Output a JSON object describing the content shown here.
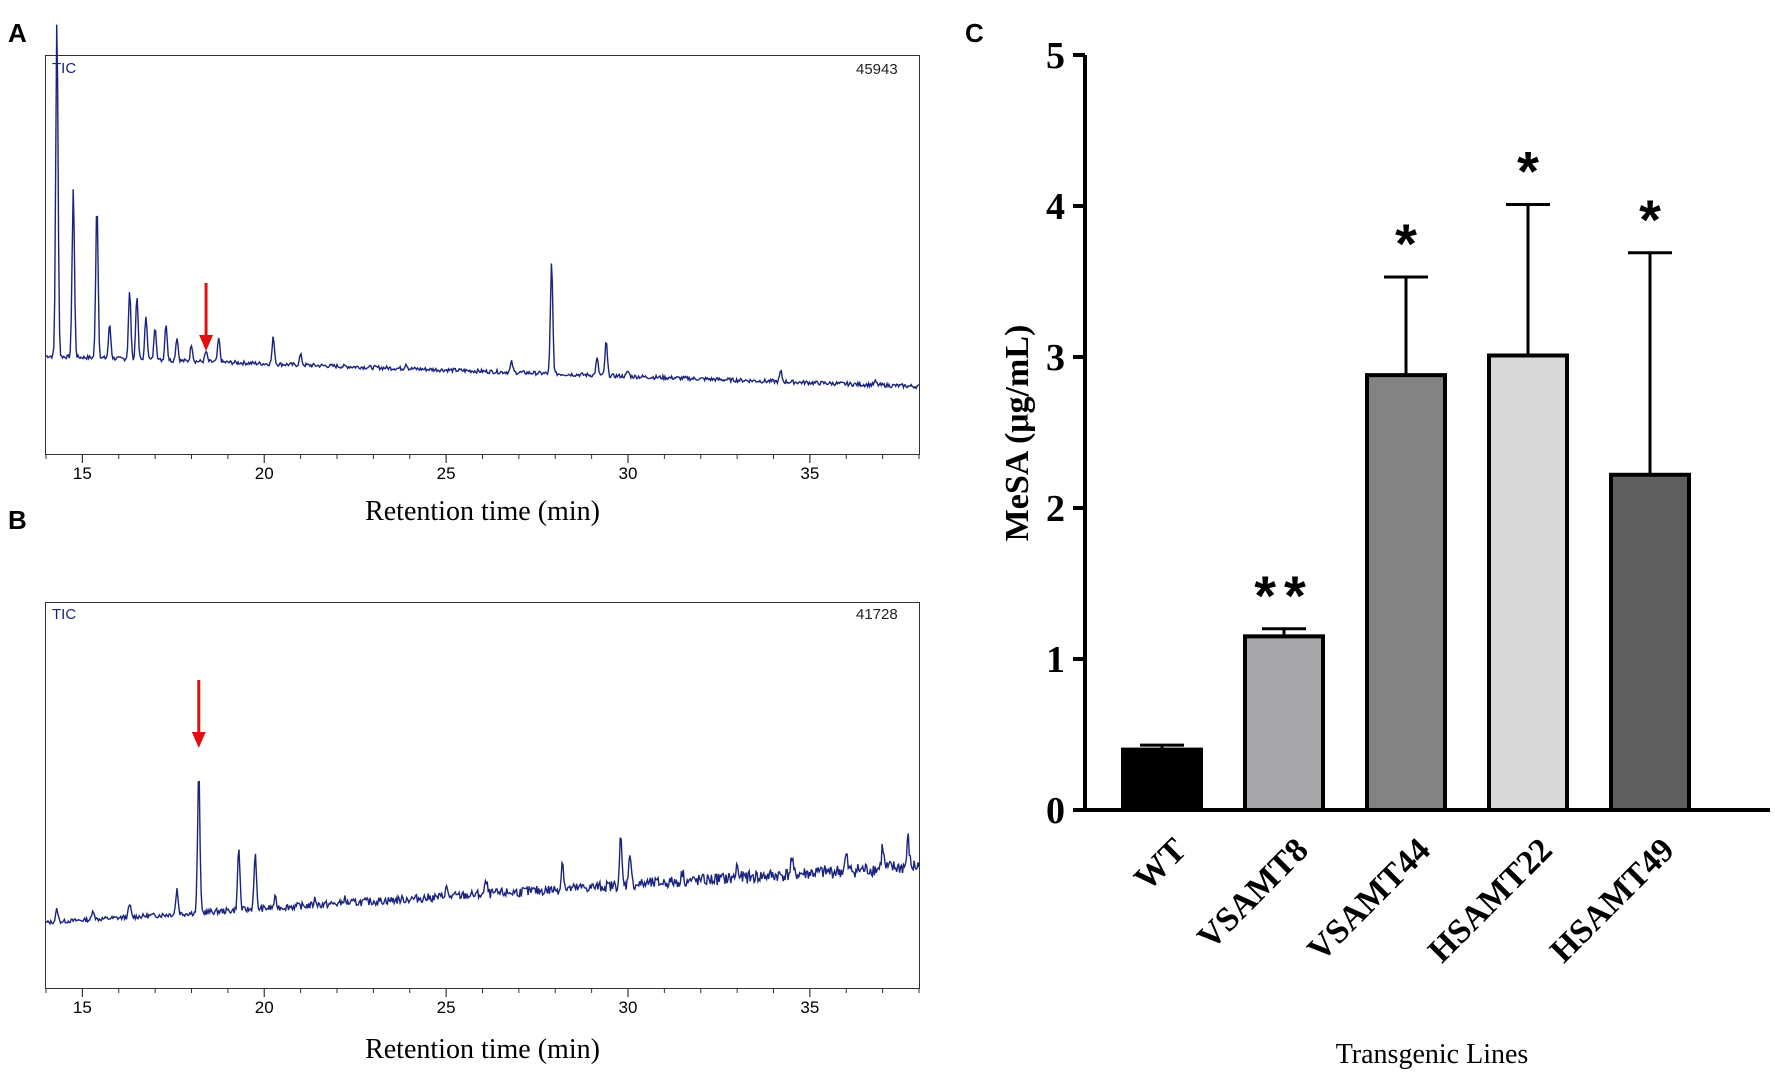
{
  "panels": {
    "a": {
      "letter": "A"
    },
    "b": {
      "letter": "B"
    },
    "c": {
      "letter": "C"
    }
  },
  "chart_data": [
    {
      "id": "A",
      "type": "line",
      "title": "TIC",
      "max_intensity_label": "45943",
      "xlabel": "Retention time (min)",
      "xlim": [
        14,
        38
      ],
      "xticks": [
        15,
        20,
        25,
        30,
        35
      ],
      "arrow_at": 18.4,
      "arrow_color": "#e01010",
      "line_color": "#1a237e",
      "baseline_start": 0.13,
      "baseline_end": 0.04,
      "peaks": [
        [
          14.3,
          1.0
        ],
        [
          14.75,
          0.5
        ],
        [
          15.4,
          0.46
        ],
        [
          15.75,
          0.1
        ],
        [
          16.3,
          0.2
        ],
        [
          16.5,
          0.19
        ],
        [
          16.75,
          0.13
        ],
        [
          17.0,
          0.1
        ],
        [
          17.3,
          0.11
        ],
        [
          17.6,
          0.07
        ],
        [
          18.0,
          0.05
        ],
        [
          18.4,
          0.03
        ],
        [
          18.75,
          0.07
        ],
        [
          20.25,
          0.08
        ],
        [
          21.0,
          0.03
        ],
        [
          23.9,
          0.015
        ],
        [
          26.8,
          0.03
        ],
        [
          27.9,
          0.33
        ],
        [
          29.15,
          0.05
        ],
        [
          29.4,
          0.1
        ],
        [
          30.0,
          0.015
        ],
        [
          34.2,
          0.03
        ],
        [
          36.8,
          0.01
        ]
      ]
    },
    {
      "id": "B",
      "type": "line",
      "title": "TIC",
      "max_intensity_label": "41728",
      "xlabel": "Retention time (min)",
      "xlim": [
        14,
        38
      ],
      "xticks": [
        15,
        20,
        25,
        30,
        35
      ],
      "arrow_at": 18.2,
      "arrow_color": "#e01010",
      "line_color": "#1a237e",
      "baseline_start": 0.04,
      "baseline_end": 0.22,
      "peaks": [
        [
          14.3,
          0.04
        ],
        [
          15.3,
          0.03
        ],
        [
          16.3,
          0.04
        ],
        [
          17.6,
          0.08
        ],
        [
          18.2,
          0.45
        ],
        [
          19.3,
          0.2
        ],
        [
          19.75,
          0.18
        ],
        [
          20.3,
          0.03
        ],
        [
          21.4,
          0.02
        ],
        [
          22.2,
          0.015
        ],
        [
          25.0,
          0.03
        ],
        [
          26.1,
          0.04
        ],
        [
          28.2,
          0.09
        ],
        [
          29.8,
          0.15
        ],
        [
          30.05,
          0.11
        ],
        [
          31.5,
          0.03
        ],
        [
          33.0,
          0.04
        ],
        [
          34.5,
          0.05
        ],
        [
          36.0,
          0.05
        ],
        [
          37.0,
          0.07
        ],
        [
          37.7,
          0.09
        ]
      ]
    },
    {
      "id": "C",
      "type": "bar",
      "title": "",
      "categories": [
        "WT",
        "VSAMT8",
        "VSAMT44",
        "HSAMT22",
        "HSAMT49"
      ],
      "values": [
        0.4,
        1.15,
        2.88,
        3.01,
        2.22
      ],
      "errors": [
        0.03,
        0.05,
        0.65,
        1.0,
        1.47
      ],
      "significance": [
        "",
        "**",
        "*",
        "*",
        "*"
      ],
      "colors": [
        "#000000",
        "#a6a6a8",
        "#838383",
        "#d8d8d8",
        "#5f5f5f"
      ],
      "xlabel": "Transgenic Lines",
      "ylabel": "MeSA (μg/mL)",
      "ylim": [
        0,
        5
      ],
      "yticks": [
        0,
        1,
        2,
        3,
        4,
        5
      ]
    }
  ]
}
